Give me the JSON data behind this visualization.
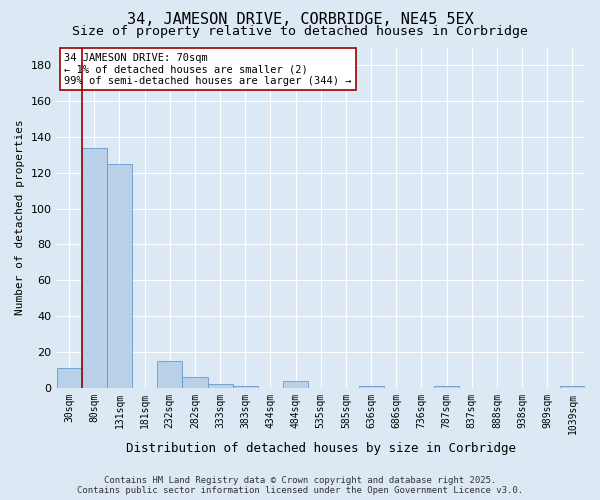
{
  "title": "34, JAMESON DRIVE, CORBRIDGE, NE45 5EX",
  "subtitle": "Size of property relative to detached houses in Corbridge",
  "xlabel": "Distribution of detached houses by size in Corbridge",
  "ylabel": "Number of detached properties",
  "categories": [
    "30sqm",
    "80sqm",
    "131sqm",
    "181sqm",
    "232sqm",
    "282sqm",
    "333sqm",
    "383sqm",
    "434sqm",
    "484sqm",
    "535sqm",
    "585sqm",
    "636sqm",
    "686sqm",
    "736sqm",
    "787sqm",
    "837sqm",
    "888sqm",
    "938sqm",
    "989sqm",
    "1039sqm"
  ],
  "values": [
    11,
    134,
    125,
    0,
    15,
    6,
    2,
    1,
    0,
    4,
    0,
    0,
    1,
    0,
    0,
    1,
    0,
    0,
    0,
    0,
    1
  ],
  "bar_color": "#b8d0e8",
  "bar_edge_color": "#6699cc",
  "vline_x": 0.5,
  "vline_color": "#990000",
  "annotation_text": "34 JAMESON DRIVE: 70sqm\n← 1% of detached houses are smaller (2)\n99% of semi-detached houses are larger (344) →",
  "annotation_box_color": "white",
  "annotation_box_edge": "#990000",
  "ylim": [
    0,
    190
  ],
  "yticks": [
    0,
    20,
    40,
    60,
    80,
    100,
    120,
    140,
    160,
    180
  ],
  "background_color": "#dce9f5",
  "plot_bg_color": "#dce9f5",
  "footer_line1": "Contains HM Land Registry data © Crown copyright and database right 2025.",
  "footer_line2": "Contains public sector information licensed under the Open Government Licence v3.0.",
  "title_fontsize": 11,
  "subtitle_fontsize": 9.5,
  "xlabel_fontsize": 9,
  "ylabel_fontsize": 8,
  "annotation_fontsize": 7.5,
  "tick_fontsize": 7,
  "footer_fontsize": 6.5
}
